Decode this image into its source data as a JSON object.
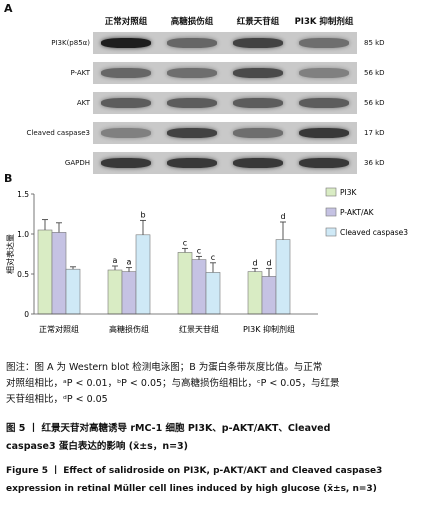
{
  "panel_a": {
    "label": "A",
    "groups": [
      "正常对照组",
      "高糖损伤组",
      "红景天苷组",
      "PI3K 抑制剂组"
    ],
    "rows": [
      {
        "name": "PI3K(p85α)",
        "size": "85 kD",
        "intensity": [
          0.95,
          0.55,
          0.75,
          0.5
        ]
      },
      {
        "name": "P-AKT",
        "size": "56 kD",
        "intensity": [
          0.55,
          0.5,
          0.7,
          0.4
        ]
      },
      {
        "name": "AKT",
        "size": "56 kD",
        "intensity": [
          0.6,
          0.6,
          0.6,
          0.6
        ]
      },
      {
        "name": "Cleaved caspase3",
        "size": "17 kD",
        "intensity": [
          0.4,
          0.75,
          0.5,
          0.8
        ]
      },
      {
        "name": "GAPDH",
        "size": "36 kD",
        "intensity": [
          0.8,
          0.8,
          0.8,
          0.8
        ]
      }
    ]
  },
  "chart_data": {
    "type": "bar",
    "panel_label": "B",
    "ylabel": "相对表达量",
    "ylim": [
      0,
      1.5
    ],
    "yticks": [
      "0",
      "0.5",
      "1.0",
      "1.5"
    ],
    "categories": [
      "正常对照组",
      "高糖损伤组",
      "红景天苷组",
      "PI3K 抑制剂组"
    ],
    "series": [
      {
        "name": "PI3K",
        "color": "#d9ecc4",
        "values": [
          1.05,
          0.55,
          0.77,
          0.53
        ],
        "errors": [
          0.13,
          0.05,
          0.05,
          0.04
        ],
        "labels": [
          "",
          "a",
          "c",
          "d"
        ]
      },
      {
        "name": "P-AKT/AK",
        "color": "#c5c2e3",
        "values": [
          1.02,
          0.53,
          0.68,
          0.47
        ],
        "errors": [
          0.12,
          0.05,
          0.04,
          0.1
        ],
        "labels": [
          "",
          "a",
          "c",
          "d"
        ]
      },
      {
        "name": "Cleaved caspase3",
        "color": "#cfe9f6",
        "values": [
          0.56,
          0.99,
          0.52,
          0.93
        ],
        "errors": [
          0.03,
          0.18,
          0.12,
          0.22
        ],
        "labels": [
          "",
          "b",
          "c",
          "d"
        ]
      }
    ]
  },
  "caption": {
    "line1": "图注：图 A 为 Western blot 检测电泳图；B 为蛋白条带灰度比值。与正常",
    "line2": "对照组相比，ᵃP < 0.01，ᵇP < 0.05；与高糖损伤组相比，ᶜP < 0.05，与红景",
    "line3": "天苷组相比，ᵈP < 0.05"
  },
  "title_cn": {
    "line1": "图 5 丨 红景天苷对高糖诱导 rMC-1 细胞 PI3K、p-AKT/AKT、Cleaved",
    "line2": "caspase3 蛋白表达的影响 (x̄±s，n=3)"
  },
  "title_en": {
    "line1": "Figure 5 丨 Effect of salidroside on PI3K, p-AKT/AKT and Cleaved caspase3",
    "line2": "expression in retinal Müller cell lines induced by high glucose (x̄±s, n=3)"
  }
}
